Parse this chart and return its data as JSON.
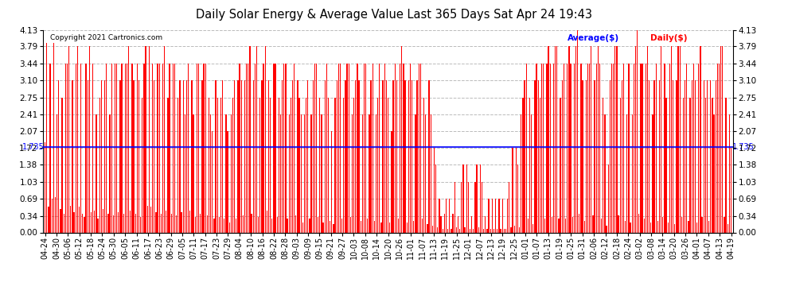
{
  "title": "Daily Solar Energy & Average Value Last 365 Days Sat Apr 24 19:43",
  "copyright": "Copyright 2021 Cartronics.com",
  "average_label": "Average($)",
  "daily_label": "Daily($)",
  "average_color": "blue",
  "daily_color": "red",
  "average_value": 1.735,
  "ymin": 0.0,
  "ymax": 4.13,
  "yticks": [
    0.0,
    0.34,
    0.69,
    1.03,
    1.38,
    1.72,
    2.07,
    2.41,
    2.75,
    3.1,
    3.44,
    3.79,
    4.13
  ],
  "bar_color": "#ff0000",
  "background_color": "#ffffff",
  "grid_color": "#aaaaaa",
  "x_labels": [
    "04-24",
    "04-30",
    "05-06",
    "05-12",
    "05-18",
    "05-24",
    "05-30",
    "06-05",
    "06-11",
    "06-17",
    "06-23",
    "06-29",
    "07-05",
    "07-11",
    "07-17",
    "07-23",
    "07-29",
    "08-04",
    "08-10",
    "08-16",
    "08-22",
    "08-28",
    "09-03",
    "09-09",
    "09-15",
    "09-21",
    "09-27",
    "10-03",
    "10-08",
    "10-14",
    "10-20",
    "10-26",
    "11-01",
    "11-07",
    "11-13",
    "11-19",
    "11-25",
    "12-01",
    "12-07",
    "12-13",
    "12-19",
    "12-25",
    "01-01",
    "01-07",
    "01-13",
    "01-19",
    "01-25",
    "01-31",
    "02-06",
    "02-12",
    "02-18",
    "02-24",
    "03-02",
    "03-08",
    "03-14",
    "03-20",
    "03-26",
    "04-01",
    "04-07",
    "04-13",
    "04-19"
  ],
  "daily_values": [
    1.84,
    3.86,
    0.52,
    3.44,
    0.69,
    3.86,
    0.72,
    2.41,
    3.1,
    0.48,
    2.75,
    0.38,
    3.44,
    3.44,
    3.79,
    0.55,
    3.1,
    0.41,
    3.44,
    3.79,
    0.52,
    3.44,
    0.38,
    0.31,
    3.44,
    3.1,
    3.79,
    0.41,
    3.44,
    0.45,
    2.41,
    0.28,
    2.75,
    3.1,
    0.48,
    3.1,
    3.44,
    0.38,
    2.41,
    3.44,
    0.35,
    3.44,
    3.44,
    0.41,
    3.1,
    3.44,
    0.38,
    3.44,
    3.44,
    3.79,
    0.45,
    3.44,
    3.1,
    0.38,
    3.44,
    3.1,
    0.31,
    2.75,
    3.44,
    3.79,
    0.55,
    3.79,
    0.52,
    3.44,
    3.1,
    0.41,
    3.44,
    3.44,
    0.38,
    3.44,
    3.79,
    0.45,
    2.75,
    3.44,
    0.38,
    3.44,
    3.44,
    0.35,
    2.75,
    3.1,
    0.41,
    3.1,
    2.41,
    3.1,
    3.44,
    0.45,
    3.1,
    2.41,
    0.31,
    3.44,
    3.44,
    0.38,
    3.1,
    3.44,
    3.44,
    0.35,
    2.75,
    2.41,
    2.07,
    0.28,
    3.1,
    2.75,
    0.31,
    2.75,
    3.1,
    0.28,
    2.41,
    2.07,
    0.21,
    2.41,
    2.75,
    3.1,
    0.28,
    3.1,
    3.44,
    3.1,
    0.35,
    3.1,
    3.44,
    3.44,
    3.79,
    0.38,
    3.1,
    3.44,
    3.79,
    0.31,
    2.75,
    3.1,
    3.44,
    3.79,
    0.45,
    3.1,
    2.75,
    0.28,
    3.44,
    3.44,
    0.31,
    2.75,
    2.41,
    3.1,
    3.44,
    3.44,
    0.28,
    2.41,
    2.75,
    3.1,
    3.44,
    0.35,
    3.1,
    2.75,
    2.41,
    0.21,
    2.41,
    2.75,
    3.1,
    0.28,
    2.41,
    3.1,
    3.44,
    3.44,
    0.31,
    2.75,
    2.41,
    0.21,
    3.1,
    3.44,
    2.75,
    0.24,
    2.07,
    0.17,
    2.75,
    3.1,
    3.44,
    3.44,
    0.28,
    2.75,
    3.1,
    3.44,
    3.44,
    0.31,
    2.41,
    2.75,
    3.1,
    3.44,
    3.1,
    0.24,
    2.41,
    3.44,
    3.44,
    0.28,
    2.41,
    3.1,
    3.44,
    0.24,
    2.41,
    2.75,
    3.44,
    0.21,
    3.1,
    3.44,
    3.1,
    2.75,
    0.21,
    2.07,
    3.1,
    3.44,
    3.1,
    0.28,
    3.44,
    3.79,
    3.44,
    3.1,
    0.21,
    3.1,
    3.44,
    3.1,
    0.24,
    2.41,
    3.1,
    3.44,
    3.44,
    0.28,
    2.75,
    2.41,
    0.17,
    3.1,
    2.41,
    0.14,
    1.72,
    1.38,
    0.1,
    0.69,
    0.34,
    0.07,
    0.38,
    0.69,
    0.07,
    0.69,
    0.07,
    0.38,
    1.03,
    0.1,
    0.34,
    0.07,
    1.03,
    1.38,
    0.1,
    1.38,
    1.03,
    0.07,
    0.34,
    0.07,
    1.03,
    1.38,
    0.1,
    1.38,
    1.03,
    0.07,
    0.34,
    0.07,
    0.69,
    0.07,
    0.69,
    0.07,
    0.69,
    0.07,
    0.69,
    0.07,
    0.69,
    0.07,
    0.07,
    0.69,
    1.03,
    0.1,
    1.72,
    0.14,
    1.72,
    1.38,
    0.1,
    2.41,
    2.75,
    3.1,
    3.44,
    0.28,
    2.75,
    2.41,
    0.17,
    3.1,
    3.44,
    3.1,
    2.75,
    3.44,
    3.44,
    0.28,
    3.44,
    3.79,
    3.44,
    0.31,
    3.44,
    3.79,
    3.79,
    0.28,
    2.75,
    3.1,
    3.44,
    0.28,
    3.44,
    3.79,
    3.44,
    0.31,
    3.44,
    3.79,
    4.13,
    0.38,
    3.44,
    3.1,
    0.24,
    3.1,
    3.44,
    3.44,
    3.79,
    0.35,
    3.1,
    3.44,
    3.79,
    3.44,
    0.28,
    2.75,
    2.41,
    0.14,
    1.38,
    3.1,
    3.44,
    3.44,
    3.79,
    3.79,
    0.35,
    2.75,
    3.1,
    3.44,
    0.24,
    2.41,
    3.44,
    0.21,
    2.41,
    3.44,
    3.79,
    4.13,
    0.38,
    3.44,
    3.44,
    0.28,
    3.44,
    3.79,
    3.1,
    0.21,
    2.41,
    3.1,
    3.44,
    0.24,
    3.1,
    3.79,
    0.31,
    3.44,
    2.75,
    0.21,
    3.44,
    3.79,
    3.1,
    0.17,
    3.1,
    3.79,
    3.79,
    0.31,
    2.75,
    3.1,
    3.44,
    0.24,
    2.75,
    3.1,
    3.44,
    3.1,
    0.21,
    3.44,
    3.79,
    0.31,
    3.1,
    2.75,
    3.1,
    0.24,
    3.1,
    2.75,
    2.41,
    3.1,
    3.44,
    3.44,
    3.79,
    3.79,
    0.31,
    2.75,
    0.17,
    2.41,
    1.72
  ]
}
